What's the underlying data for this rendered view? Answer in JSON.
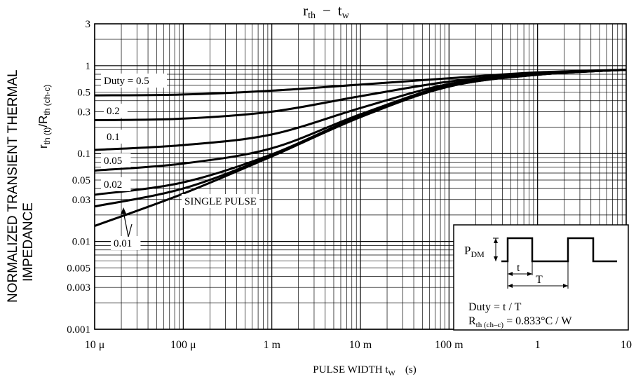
{
  "chart_data": {
    "type": "line",
    "title_main": "r",
    "title_sub": "th",
    "title_dash": "−",
    "title_main2": "t",
    "title_sub2": "w",
    "x_scale": "log",
    "y_scale": "log",
    "xlim": [
      1e-05,
      10
    ],
    "ylim": [
      0.001,
      3
    ],
    "x_ticks": [
      {
        "value": 1e-05,
        "label": "10 μ"
      },
      {
        "value": 0.0001,
        "label": "100 μ"
      },
      {
        "value": 0.001,
        "label": "1 m"
      },
      {
        "value": 0.01,
        "label": "10 m"
      },
      {
        "value": 0.1,
        "label": "100 m"
      },
      {
        "value": 1,
        "label": "1"
      },
      {
        "value": 10,
        "label": "10"
      }
    ],
    "y_ticks": [
      {
        "value": 3,
        "label": "3"
      },
      {
        "value": 1,
        "label": "1"
      },
      {
        "value": 0.5,
        "label": "0.5"
      },
      {
        "value": 0.3,
        "label": "0.3"
      },
      {
        "value": 0.1,
        "label": "0.1"
      },
      {
        "value": 0.05,
        "label": "0.05"
      },
      {
        "value": 0.03,
        "label": "0.03"
      },
      {
        "value": 0.01,
        "label": "0.01"
      },
      {
        "value": 0.005,
        "label": "0.005"
      },
      {
        "value": 0.003,
        "label": "0.003"
      },
      {
        "value": 0.001,
        "label": "0.001"
      }
    ],
    "xlabel_main": "PULSE WIDTH   t",
    "xlabel_sub": "W",
    "xlabel_unit": "(s)",
    "ylabel_line1": "NORMALIZED TRANSIENT THERMAL",
    "ylabel_line2": "IMPEDANCE",
    "ylabel_sym_main": "r",
    "ylabel_sym_sub1": "th (t)",
    "ylabel_sym_mid": "/R",
    "ylabel_sym_sub2": "th (ch-c)",
    "grid": true,
    "series": [
      {
        "name": "Duty = 0.5",
        "x": [
          1e-05,
          0.0001,
          0.001,
          0.01,
          0.1,
          1,
          10
        ],
        "y": [
          0.46,
          0.47,
          0.52,
          0.61,
          0.72,
          0.84,
          0.9
        ]
      },
      {
        "name": "0.2",
        "x": [
          1e-05,
          0.0001,
          0.001,
          0.01,
          0.1,
          1,
          10
        ],
        "y": [
          0.24,
          0.25,
          0.3,
          0.45,
          0.66,
          0.82,
          0.9
        ]
      },
      {
        "name": "0.1",
        "x": [
          1e-05,
          0.0001,
          0.001,
          0.01,
          0.1,
          1,
          10
        ],
        "y": [
          0.11,
          0.125,
          0.165,
          0.33,
          0.62,
          0.8,
          0.9
        ]
      },
      {
        "name": "0.05",
        "x": [
          1e-05,
          0.0001,
          0.001,
          0.01,
          0.1,
          1,
          10
        ],
        "y": [
          0.064,
          0.077,
          0.115,
          0.28,
          0.6,
          0.8,
          0.9
        ]
      },
      {
        "name": "0.02",
        "x": [
          1e-05,
          0.0001,
          0.001,
          0.01,
          0.1,
          1,
          10
        ],
        "y": [
          0.034,
          0.047,
          0.098,
          0.27,
          0.59,
          0.79,
          0.9
        ]
      },
      {
        "name": "0.01",
        "x": [
          1e-05,
          0.0001,
          0.001,
          0.01,
          0.1,
          1,
          10
        ],
        "y": [
          0.025,
          0.04,
          0.095,
          0.265,
          0.58,
          0.79,
          0.9
        ]
      },
      {
        "name": "SINGLE PULSE",
        "x": [
          1e-05,
          0.0001,
          0.001,
          0.01,
          0.1,
          1,
          10
        ],
        "y": [
          0.015,
          0.035,
          0.093,
          0.26,
          0.58,
          0.79,
          0.9
        ]
      }
    ],
    "annotations": {
      "pdm_main": "P",
      "pdm_sub": "DM",
      "t_label": "t",
      "T_label": "T",
      "duty_formula": "Duty = t / T",
      "rth_main": "R",
      "rth_sub": "th (ch–c)",
      "rth_value": "= 0.833°C / W"
    }
  }
}
